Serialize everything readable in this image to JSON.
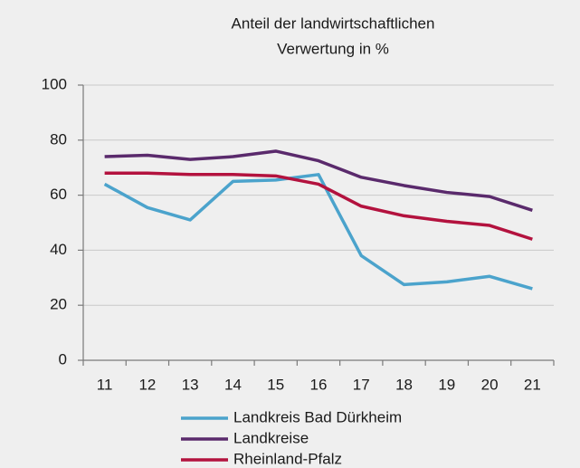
{
  "chart_data": {
    "type": "line",
    "title": [
      "Anteil der landwirtschaftlichen",
      "Verwertung in %"
    ],
    "categories": [
      "11",
      "12",
      "13",
      "14",
      "15",
      "16",
      "17",
      "18",
      "19",
      "20",
      "21"
    ],
    "series": [
      {
        "name": "Landkreis Bad Dürkheim",
        "color": "#4ba3cc",
        "values": [
          64,
          55.5,
          51,
          65,
          65.5,
          67.5,
          38,
          27.5,
          28.5,
          30.5,
          26
        ]
      },
      {
        "name": "Landkreise",
        "color": "#5a2a6c",
        "values": [
          74,
          74.5,
          73,
          74,
          76,
          72.5,
          66.5,
          63.5,
          61,
          59.5,
          54.5
        ]
      },
      {
        "name": "Rheinland-Pfalz",
        "color": "#b3123e",
        "values": [
          68,
          68,
          67.5,
          67.5,
          67,
          64,
          56,
          52.5,
          50.5,
          49,
          44
        ]
      }
    ],
    "ylim": [
      0,
      100
    ],
    "yticks": [
      0,
      20,
      40,
      60,
      80,
      100
    ],
    "grid": true,
    "legend": "bottom"
  }
}
